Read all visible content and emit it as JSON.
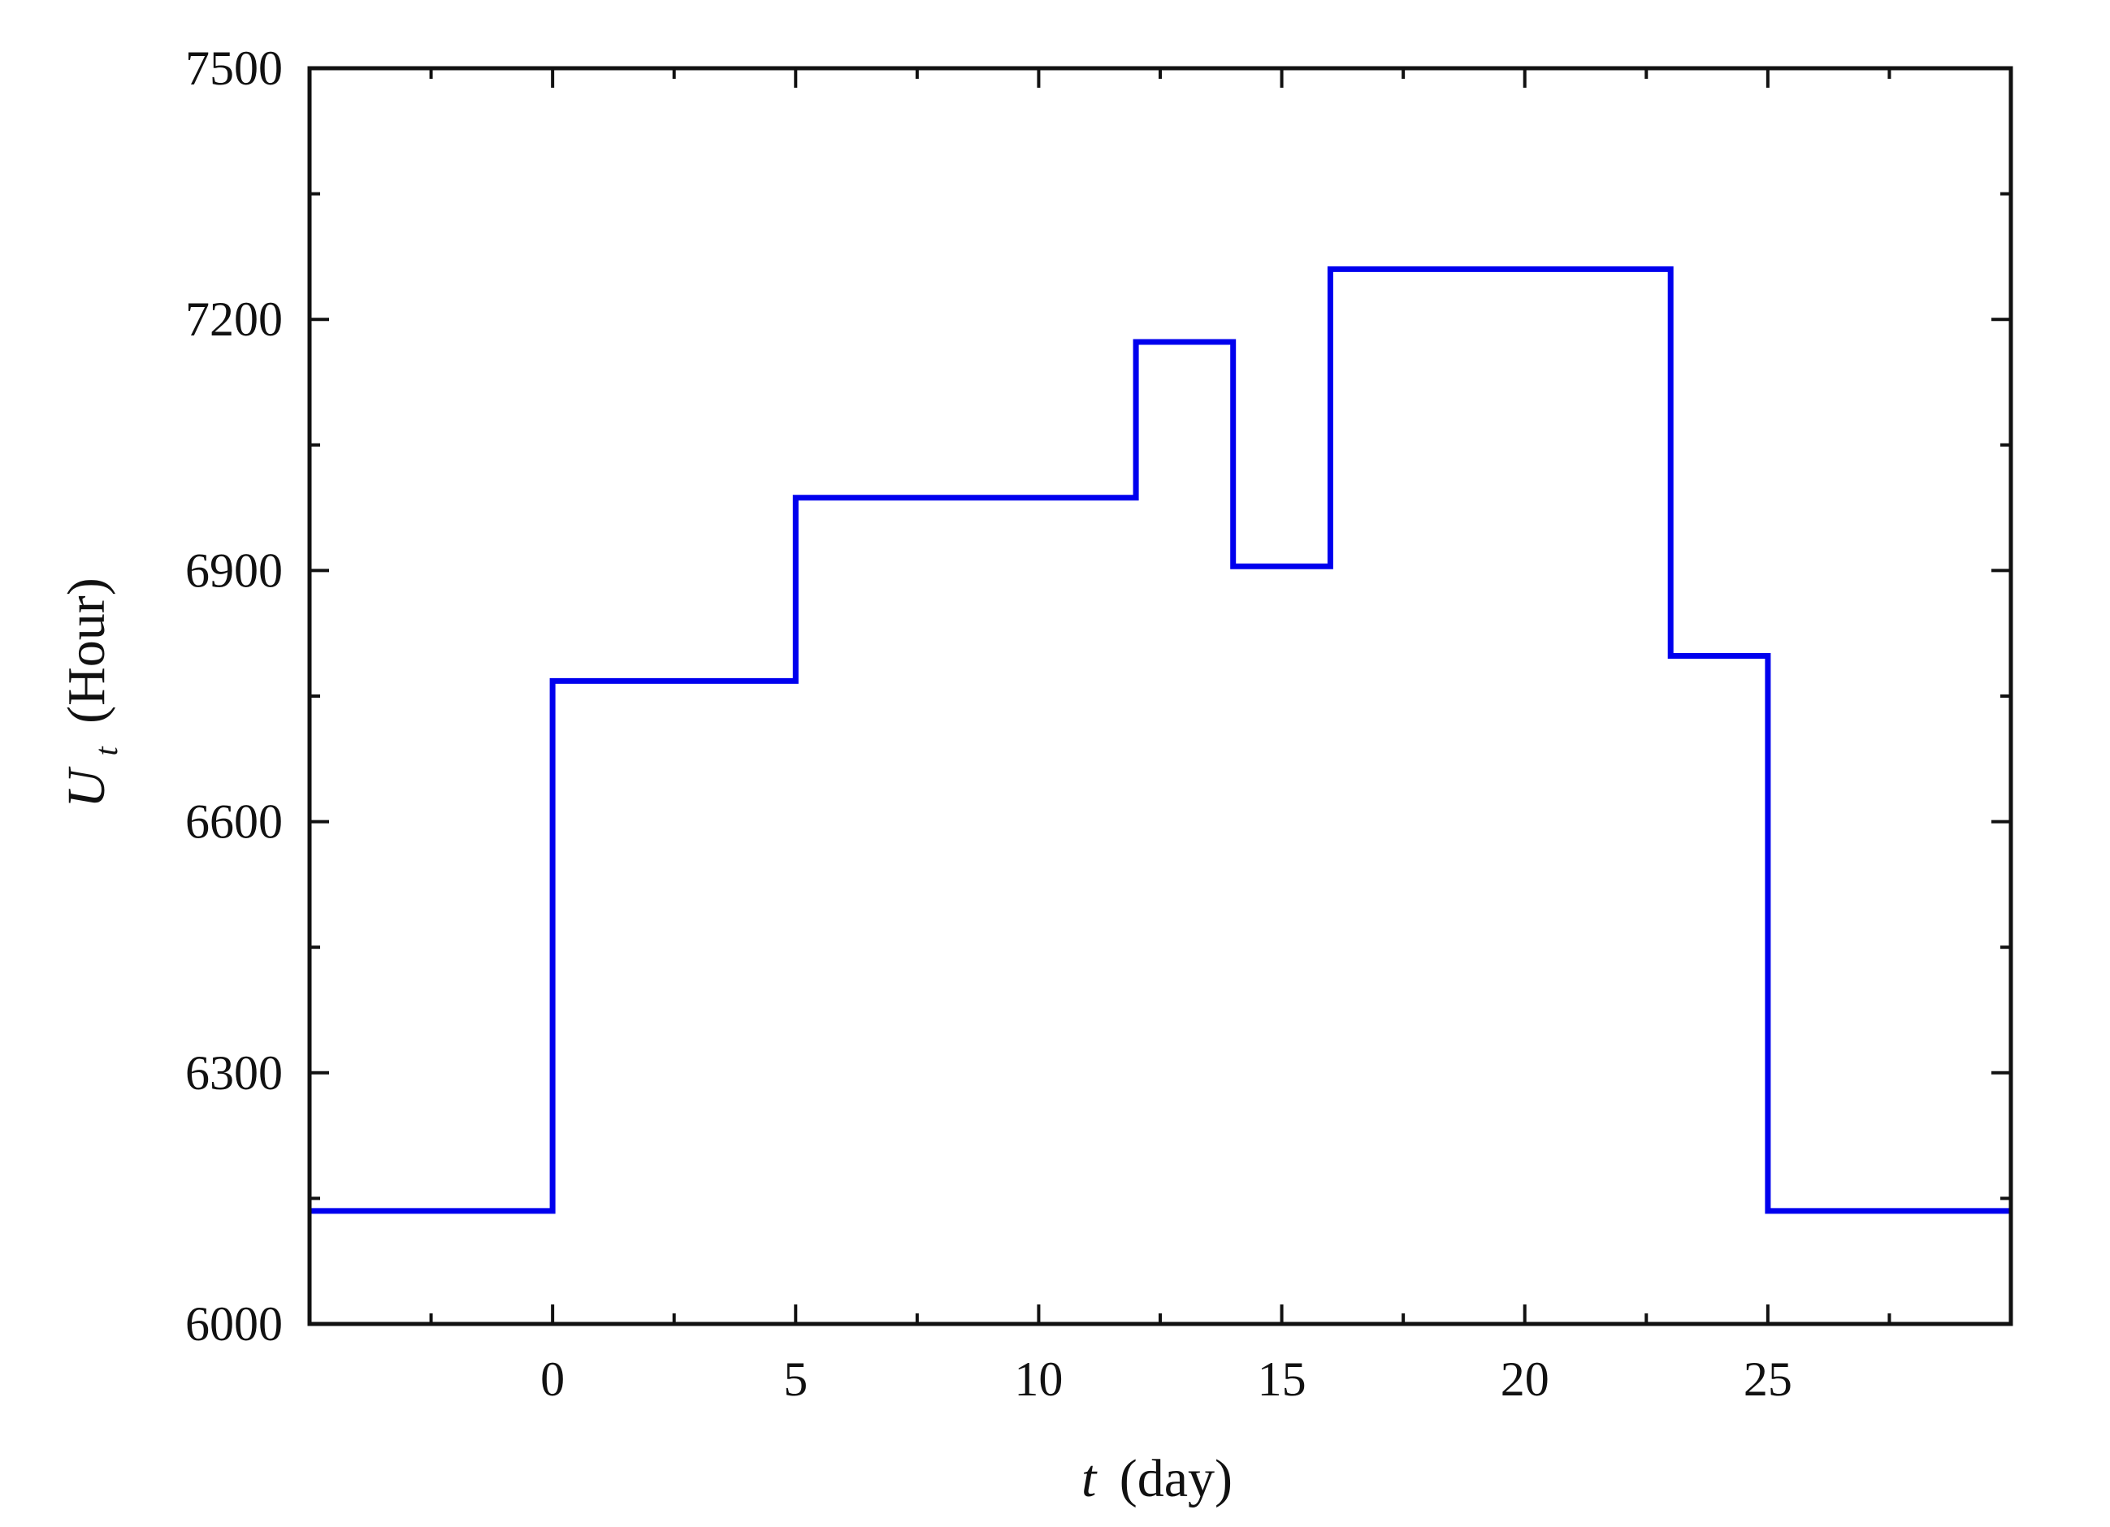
{
  "chart_data": {
    "type": "line",
    "step": true,
    "xlabel_var": "t",
    "xlabel_unit": "(day)",
    "ylabel_var": "U",
    "ylabel_sub": "t",
    "ylabel_unit": "(Hour)",
    "xlim": [
      -5,
      30
    ],
    "ylim": [
      6000,
      7500
    ],
    "x_ticks": [
      "0",
      "5",
      "10",
      "15",
      "20",
      "25"
    ],
    "y_ticks": [
      "6000",
      "6300",
      "6600",
      "6900",
      "7200",
      "7500"
    ],
    "grid": false,
    "legend": "none",
    "color": "#0000ee",
    "series": [
      {
        "x": [
          -5,
          0,
          0,
          5,
          5,
          12,
          12,
          14,
          14,
          16,
          16,
          23,
          23,
          25,
          25,
          30
        ],
        "y": [
          6135,
          6135,
          6768,
          6768,
          6987,
          6987,
          7173,
          7173,
          6905,
          6905,
          7260,
          7260,
          6798,
          6798,
          6135,
          6135
        ]
      }
    ]
  }
}
